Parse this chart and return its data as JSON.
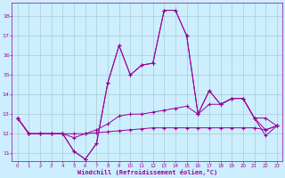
{
  "xlabel": "Windchill (Refroidissement éolien,°C)",
  "background_color": "#cceeff",
  "grid_color": "#aacccc",
  "line_color": "#990099",
  "x_ticks": [
    0,
    1,
    2,
    3,
    4,
    5,
    6,
    7,
    8,
    9,
    10,
    11,
    12,
    13,
    14,
    15,
    16,
    17,
    18,
    19,
    20,
    21,
    22,
    23
  ],
  "y_ticks": [
    11,
    12,
    13,
    14,
    15,
    16,
    17,
    18
  ],
  "ylim": [
    10.6,
    18.7
  ],
  "xlim": [
    -0.5,
    23.5
  ],
  "series1": [
    12.8,
    12.0,
    12.0,
    12.0,
    12.0,
    11.1,
    10.7,
    11.5,
    14.6,
    16.5,
    15.0,
    15.5,
    15.6,
    18.3,
    18.3,
    17.0,
    13.0,
    14.2,
    13.5,
    13.8,
    13.8,
    12.8,
    12.8,
    12.4
  ],
  "series2": [
    12.8,
    12.0,
    12.0,
    12.0,
    12.0,
    11.1,
    10.7,
    11.5,
    14.6,
    16.5,
    15.0,
    15.5,
    15.6,
    18.3,
    18.3,
    17.0,
    13.0,
    14.2,
    13.5,
    13.8,
    13.8,
    12.8,
    11.9,
    12.4
  ],
  "series3": [
    12.8,
    12.0,
    12.0,
    12.0,
    12.0,
    11.8,
    12.0,
    12.2,
    12.5,
    12.9,
    13.0,
    13.0,
    13.1,
    13.2,
    13.3,
    13.4,
    13.0,
    13.5,
    13.5,
    13.8,
    13.8,
    12.8,
    12.2,
    12.4
  ],
  "series4": [
    12.8,
    12.0,
    12.0,
    12.0,
    12.0,
    12.0,
    12.0,
    12.05,
    12.1,
    12.15,
    12.2,
    12.25,
    12.3,
    12.3,
    12.3,
    12.3,
    12.3,
    12.3,
    12.3,
    12.3,
    12.3,
    12.3,
    12.2,
    12.4
  ]
}
